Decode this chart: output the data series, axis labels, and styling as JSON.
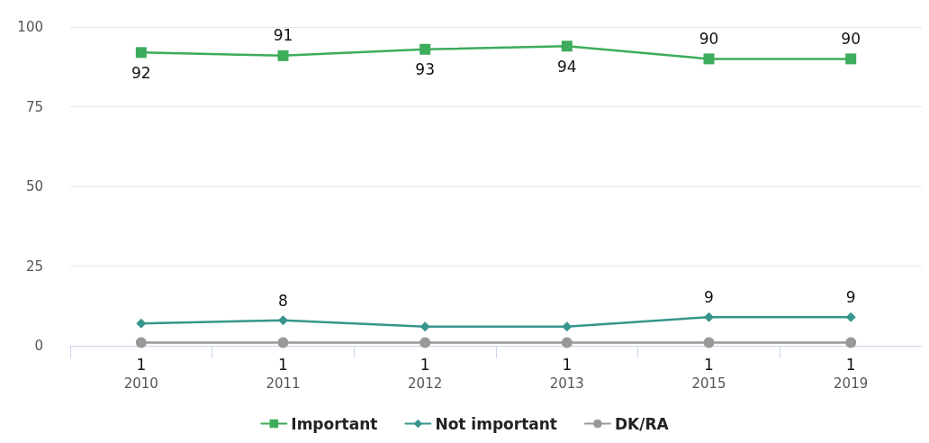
{
  "chart_data": {
    "type": "line",
    "categories": [
      "2010",
      "2011",
      "2012",
      "2013",
      "2015",
      "2019"
    ],
    "series": [
      {
        "name": "Important",
        "color": "#3dac5b",
        "marker": "square",
        "values": [
          92,
          91,
          93,
          94,
          90,
          90
        ],
        "value_labels": [
          "92",
          "91",
          "93",
          "94",
          "90",
          "90"
        ]
      },
      {
        "name": "Not important",
        "color": "#37968c",
        "marker": "diamond",
        "values": [
          7,
          8,
          6,
          6,
          9,
          9
        ],
        "value_labels": [
          null,
          "8",
          null,
          null,
          "9",
          "9"
        ]
      },
      {
        "name": "DK/RA",
        "color": "#999999",
        "marker": "circle",
        "values": [
          1,
          1,
          1,
          1,
          1,
          1
        ],
        "value_labels": [
          "1",
          "1",
          "1",
          "1",
          "1",
          "1"
        ]
      }
    ],
    "ylim": [
      0,
      100
    ],
    "yticks": [
      0,
      25,
      50,
      75,
      100
    ],
    "grid": "y",
    "legend": "bottom",
    "line_style": "solid"
  }
}
